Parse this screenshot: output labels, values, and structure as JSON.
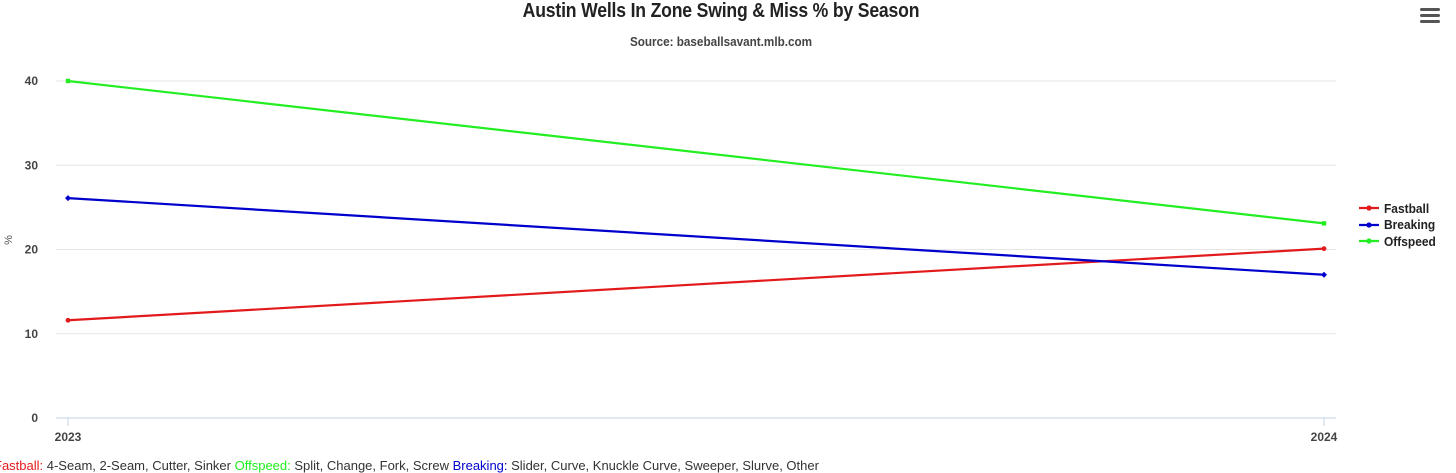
{
  "chart_data": {
    "type": "line",
    "title": "Austin Wells In Zone Swing & Miss % by Season",
    "subtitle": "Source: baseballsavant.mlb.com",
    "xlabel": "",
    "ylabel": "%",
    "categories": [
      "2023",
      "2024"
    ],
    "ylim": [
      0,
      40
    ],
    "yticks": [
      0,
      10,
      20,
      30,
      40
    ],
    "grid": true,
    "legend_position": "right",
    "series": [
      {
        "name": "Fastball",
        "color": "#e31a1c",
        "values": [
          11.6,
          20.1
        ]
      },
      {
        "name": "Breaking",
        "color": "#0000cc",
        "values": [
          26.1,
          17.0
        ]
      },
      {
        "name": "Offspeed",
        "color": "#22ee22",
        "values": [
          40.0,
          23.1
        ]
      }
    ]
  },
  "menu": {
    "icon": "hamburger-menu-icon"
  },
  "caption": [
    {
      "text": "Fastball:",
      "color": "#e31a1c"
    },
    {
      "text": " 4-Seam, 2-Seam, Cutter, Sinker ",
      "color": "#333333"
    },
    {
      "text": "Offspeed:",
      "color": "#22ee22"
    },
    {
      "text": " Split, Change, Fork, Screw ",
      "color": "#333333"
    },
    {
      "text": "Breaking:",
      "color": "#0000cc"
    },
    {
      "text": " Slider, Curve, Knuckle Curve, Sweeper, Slurve, Other",
      "color": "#333333"
    }
  ]
}
